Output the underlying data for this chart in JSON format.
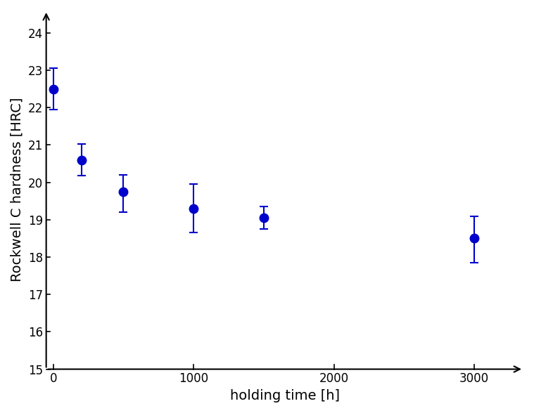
{
  "x": [
    0,
    200,
    500,
    1000,
    1500,
    3000
  ],
  "y": [
    22.5,
    20.6,
    19.75,
    19.3,
    19.05,
    18.5
  ],
  "yerr_upper": [
    0.55,
    0.42,
    0.45,
    0.65,
    0.3,
    0.6
  ],
  "yerr_lower": [
    0.55,
    0.42,
    0.55,
    0.65,
    0.3,
    0.65
  ],
  "color": "#0000CC",
  "marker": "o",
  "markersize": 9,
  "linewidth": 0,
  "capsize": 4,
  "xlabel": "holding time [h]",
  "ylabel": "Rockwell C hardness [HRC]",
  "xlim": [
    -50,
    3350
  ],
  "ylim": [
    15,
    24.6
  ],
  "xticks": [
    0,
    1000,
    2000,
    3000
  ],
  "yticks": [
    15,
    16,
    17,
    18,
    19,
    20,
    21,
    22,
    23,
    24
  ],
  "xlabel_fontsize": 14,
  "ylabel_fontsize": 14,
  "tick_fontsize": 12,
  "arrow_lw": 1.5,
  "arrow_mutation_scale": 15
}
